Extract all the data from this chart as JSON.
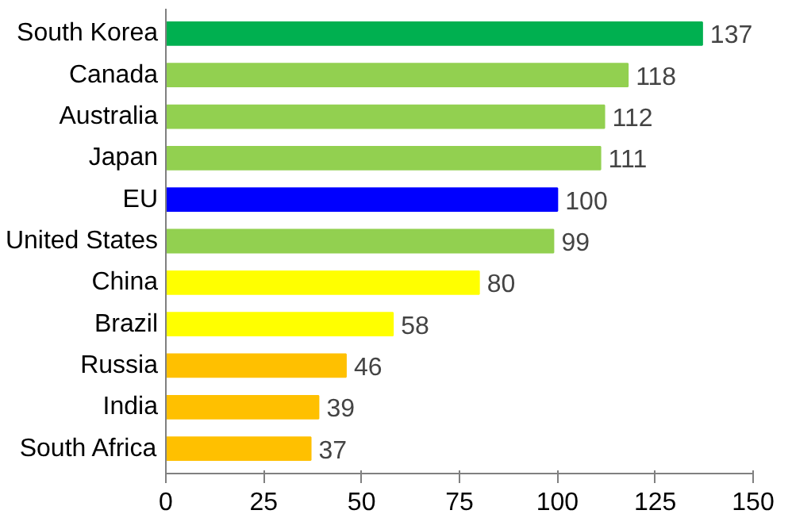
{
  "chart_data": {
    "type": "bar",
    "orientation": "horizontal",
    "categories": [
      "South Korea",
      "Canada",
      "Australia",
      "Japan",
      "EU",
      "United States",
      "China",
      "Brazil",
      "Russia",
      "India",
      "South Africa"
    ],
    "values": [
      137,
      118,
      112,
      111,
      100,
      99,
      80,
      58,
      46,
      39,
      37
    ],
    "colors": [
      "#00b050",
      "#92d050",
      "#92d050",
      "#92d050",
      "#0000ff",
      "#92d050",
      "#ffff00",
      "#ffff00",
      "#ffc000",
      "#ffc000",
      "#ffc000"
    ],
    "xlim": [
      0,
      150
    ],
    "xticks": [
      0,
      25,
      50,
      75,
      100,
      125,
      150
    ],
    "data_labels": true,
    "grid": false
  }
}
